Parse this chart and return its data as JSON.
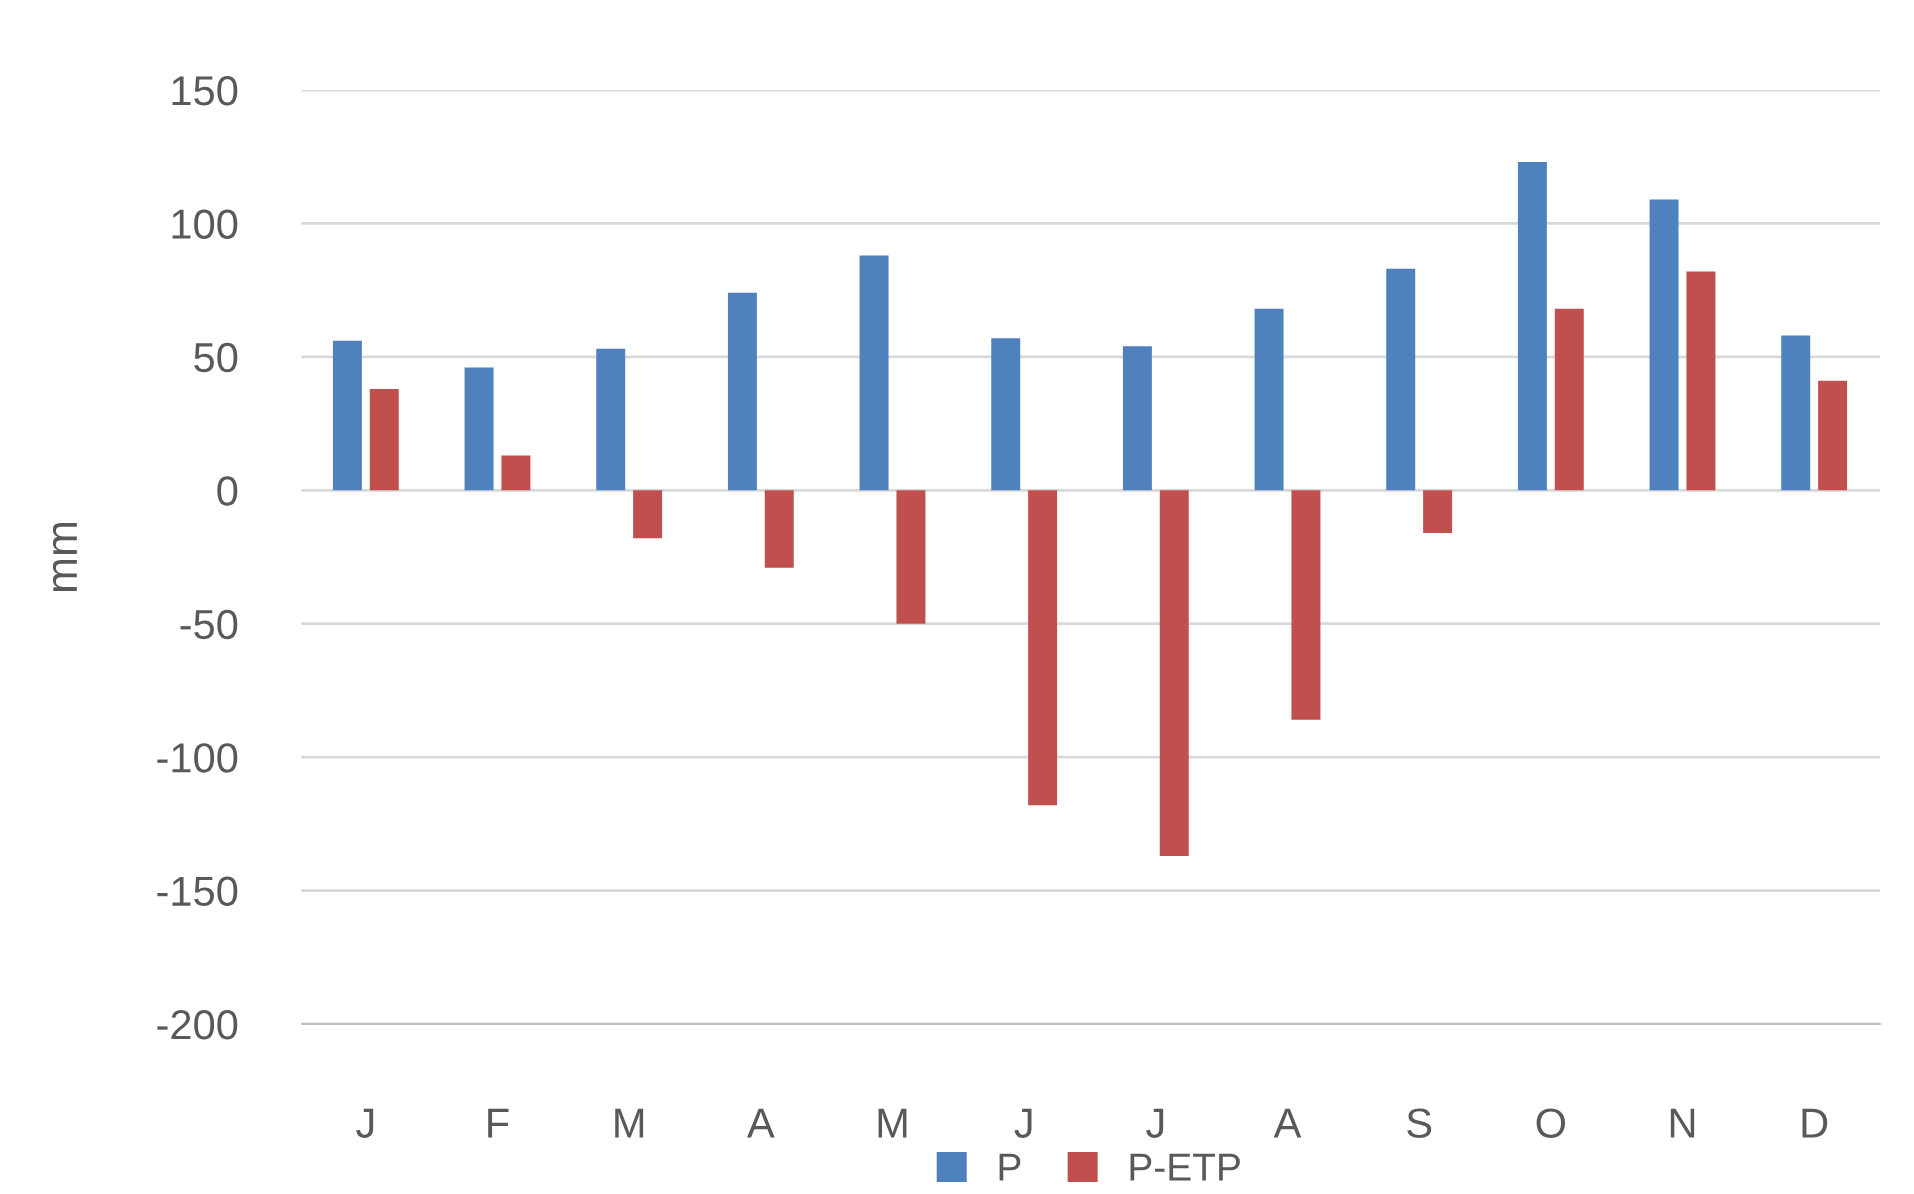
{
  "chart_data": {
    "type": "bar",
    "ylabel": "mm",
    "categories": [
      "J",
      "F",
      "M",
      "A",
      "M",
      "J",
      "J",
      "A",
      "S",
      "O",
      "N",
      "D"
    ],
    "series": [
      {
        "name": "P",
        "color": "#4f81bd",
        "values": [
          56,
          46,
          53,
          74,
          88,
          57,
          54,
          68,
          83,
          123,
          109,
          58
        ]
      },
      {
        "name": "P-ETP",
        "color": "#c0504d",
        "values": [
          38,
          13,
          -18,
          -29,
          -50,
          -118,
          -137,
          -86,
          -16,
          68,
          82,
          41
        ]
      }
    ],
    "ylim": [
      -200,
      150
    ],
    "yticks": [
      -200,
      -150,
      -100,
      -50,
      0,
      50,
      100,
      150
    ],
    "grid": "y",
    "legend": "bottom"
  }
}
